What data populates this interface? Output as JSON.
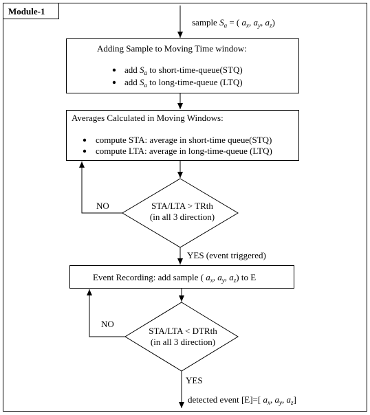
{
  "module": {
    "label": "Module-1"
  },
  "input": {
    "prefix": "sample ",
    "symbol": "S",
    "sub": "a",
    "eq": " = ( ",
    "ax": "a",
    "ax_sub": "x",
    "ay": "a",
    "ay_sub": "y",
    "az": "a",
    "az_sub": "z",
    "sep": ", ",
    "close": ")"
  },
  "box1": {
    "title": "Adding Sample to Moving Time window:",
    "bullets": [
      {
        "pre": "add ",
        "sym": "S",
        "sub": "a",
        "post": " to short-time-queue(STQ)"
      },
      {
        "pre": "add ",
        "sym": "S",
        "sub": "a",
        "post": " to long-time-queue (LTQ)"
      }
    ]
  },
  "box2": {
    "title": "Averages Calculated in Moving Windows:",
    "bullets": [
      "compute STA: average in short-time queue(STQ)",
      "compute LTA: average in long-time-queue (LTQ)"
    ]
  },
  "diamond1": {
    "line1": "STA/LTA > TRth",
    "line2": "(in all 3 direction)",
    "no_label": "NO",
    "yes_label": "YES (event triggered)"
  },
  "box3": {
    "pre": "Event Recording: add sample ( ",
    "a": "a",
    "x": "x",
    "y": "y",
    "z": "z",
    "sep": ", ",
    "post": ") to E"
  },
  "diamond2": {
    "line1": "STA/LTA < DTRth",
    "line2": "(in all 3 direction)",
    "no_label": "NO",
    "yes_label": "YES"
  },
  "output": {
    "pre": "detected event [E]=[ ",
    "a": "a",
    "x": "x",
    "y": "y",
    "z": "z",
    "sep": ", ",
    "post": "]"
  }
}
